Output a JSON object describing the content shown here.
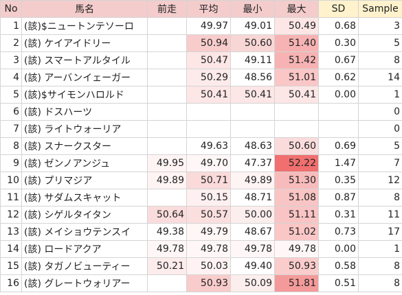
{
  "columns": {
    "no": "No",
    "name": "馬名",
    "prev": "前走",
    "avg": "平均",
    "min": "最小",
    "max": "最大",
    "sd": "SD",
    "sample": "Sample"
  },
  "rows": [
    {
      "no": "1",
      "name": "(該)$ニュートンテソーロ",
      "prev": "",
      "avg": "49.97",
      "min": "49.01",
      "max": "50.49",
      "sd": "0.68",
      "sample": "3",
      "bg": {
        "prev": "#ffffff",
        "avg": "#ffffff",
        "min": "#ffffff",
        "max": "#fde6e6"
      }
    },
    {
      "no": "2",
      "name": "(該) ケイアイドリー",
      "prev": "",
      "avg": "50.94",
      "min": "50.60",
      "max": "51.40",
      "sd": "0.30",
      "sample": "5",
      "bg": {
        "prev": "#ffffff",
        "avg": "#f9cccc",
        "min": "#f9d6d6",
        "max": "#f7b3b3"
      }
    },
    {
      "no": "3",
      "name": "(該) スマートアルタイル",
      "prev": "",
      "avg": "50.47",
      "min": "49.11",
      "max": "51.42",
      "sd": "0.67",
      "sample": "8",
      "bg": {
        "prev": "#ffffff",
        "avg": "#fde6e6",
        "min": "#ffffff",
        "max": "#f7b3b3"
      }
    },
    {
      "no": "4",
      "name": "(該) アーバンイェーガー",
      "prev": "",
      "avg": "50.29",
      "min": "48.56",
      "max": "51.01",
      "sd": "0.62",
      "sample": "14",
      "bg": {
        "prev": "#ffffff",
        "avg": "#fdeaea",
        "min": "#ffffff",
        "max": "#fac6c6"
      }
    },
    {
      "no": "5",
      "name": "(該)$サイモンハロルド",
      "prev": "",
      "avg": "50.41",
      "min": "50.41",
      "max": "50.41",
      "sd": "0.00",
      "sample": "1",
      "bg": {
        "prev": "#ffffff",
        "avg": "#fde6e6",
        "min": "#fde6e6",
        "max": "#fde6e6"
      }
    },
    {
      "no": "6",
      "name": "(該) ドスハーツ",
      "prev": "",
      "avg": "",
      "min": "",
      "max": "",
      "sd": "",
      "sample": "0",
      "bg": {
        "prev": "#ffffff",
        "avg": "#ffffff",
        "min": "#ffffff",
        "max": "#ffffff"
      }
    },
    {
      "no": "7",
      "name": "(該) ライトウォーリア",
      "prev": "",
      "avg": "",
      "min": "",
      "max": "",
      "sd": "",
      "sample": "0",
      "bg": {
        "prev": "#ffffff",
        "avg": "#ffffff",
        "min": "#ffffff",
        "max": "#ffffff"
      }
    },
    {
      "no": "8",
      "name": "(該) スナークスター",
      "prev": "",
      "avg": "49.63",
      "min": "48.63",
      "max": "50.60",
      "sd": "0.69",
      "sample": "5",
      "bg": {
        "prev": "#ffffff",
        "avg": "#ffffff",
        "min": "#ffffff",
        "max": "#fbdcdc"
      }
    },
    {
      "no": "9",
      "name": "(該) ゼンノアンジュ",
      "prev": "49.95",
      "avg": "49.70",
      "min": "47.37",
      "max": "52.22",
      "sd": "1.47",
      "sample": "7",
      "bg": {
        "prev": "#fff4f4",
        "avg": "#fff7f7",
        "min": "#ffffff",
        "max": "#f16f6f"
      }
    },
    {
      "no": "10",
      "name": "(該) プリマジア",
      "prev": "49.89",
      "avg": "50.71",
      "min": "49.89",
      "max": "51.30",
      "sd": "0.35",
      "sample": "12",
      "bg": {
        "prev": "#fff4f4",
        "avg": "#fbdada",
        "min": "#fff4f4",
        "max": "#f8bbbb"
      }
    },
    {
      "no": "11",
      "name": "(該) サダムスキャット",
      "prev": "",
      "avg": "50.15",
      "min": "48.71",
      "max": "51.08",
      "sd": "0.87",
      "sample": "8",
      "bg": {
        "prev": "#ffffff",
        "avg": "#fef0f0",
        "min": "#ffffff",
        "max": "#f9c4c4"
      }
    },
    {
      "no": "12",
      "name": "(該) シゲルタイタン",
      "prev": "50.64",
      "avg": "50.57",
      "min": "50.00",
      "max": "51.11",
      "sd": "0.31",
      "sample": "11",
      "bg": {
        "prev": "#fbdcdc",
        "avg": "#fbdfdf",
        "min": "#fdeeee",
        "max": "#f9c4c4"
      }
    },
    {
      "no": "13",
      "name": "(該) メイショウテンスイ",
      "prev": "49.38",
      "avg": "49.79",
      "min": "48.67",
      "max": "51.02",
      "sd": "0.73",
      "sample": "17",
      "bg": {
        "prev": "#ffffff",
        "avg": "#fff6f6",
        "min": "#ffffff",
        "max": "#fac6c6"
      }
    },
    {
      "no": "14",
      "name": "(該) ロードアクア",
      "prev": "49.78",
      "avg": "49.78",
      "min": "49.78",
      "max": "49.78",
      "sd": "0.00",
      "sample": "1",
      "bg": {
        "prev": "#fff7f7",
        "avg": "#fff7f7",
        "min": "#fff7f7",
        "max": "#fff7f7"
      }
    },
    {
      "no": "15",
      "name": "(該) タガノビューティー",
      "prev": "50.21",
      "avg": "50.03",
      "min": "49.40",
      "max": "50.93",
      "sd": "0.58",
      "sample": "8",
      "bg": {
        "prev": "#fdecec",
        "avg": "#fef2f2",
        "min": "#ffffff",
        "max": "#facccc"
      }
    },
    {
      "no": "16",
      "name": "(該) グレートウォリアー",
      "prev": "",
      "avg": "50.93",
      "min": "50.09",
      "max": "51.81",
      "sd": "0.51",
      "sample": "8",
      "bg": {
        "prev": "#ffffff",
        "avg": "#f9cccc",
        "min": "#fdeeee",
        "max": "#f49a9a"
      }
    }
  ]
}
